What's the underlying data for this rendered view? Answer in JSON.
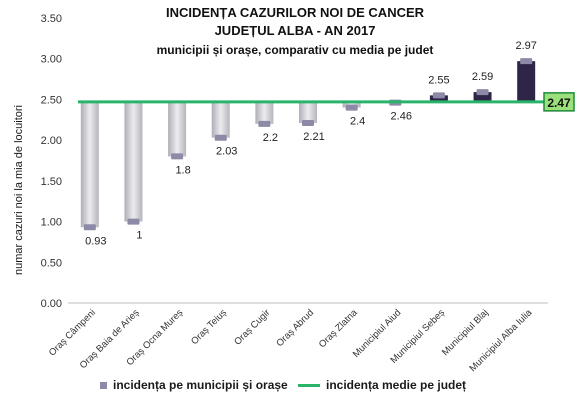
{
  "chart_data": {
    "type": "bar",
    "title": "INCIDENȚA CAZURILOR NOI DE CANCER",
    "subtitle1": "JUDEȚUL ALBA - AN 2017",
    "subtitle2": "municipii și orașe, comparativ cu media pe judet",
    "ylabel": "numar cazuri noi la mia de locuitori",
    "xlabel": "",
    "ylim": [
      0,
      3.5
    ],
    "yticks": [
      "0.00",
      "0.50",
      "1.00",
      "1.50",
      "2.00",
      "2.50",
      "3.00",
      "3.50"
    ],
    "baseline": 2.47,
    "categories": [
      "Oraș Câmpeni",
      "Oraș Baia de Arieș",
      "Oraș Ocna Mureș",
      "Oraș Teiuș",
      "Oraș Cugir",
      "Oraș Abrud",
      "Oraș Zlatna",
      "Municipiul Aiud",
      "Municipiul Sebeș",
      "Municipiul Blaj",
      "Municipiul Alba Iulia"
    ],
    "values": [
      0.93,
      1,
      1.8,
      2.03,
      2.2,
      2.21,
      2.4,
      2.46,
      2.55,
      2.59,
      2.97
    ],
    "value_labels": [
      "0.93",
      "1",
      "1.8",
      "2.03",
      "2.2",
      "2.21",
      "2.4",
      "2.46",
      "2.55",
      "2.59",
      "2.97"
    ],
    "average_label": "2.47",
    "legend": [
      "incidența pe municipii și orașe",
      "incidența medie pe județ"
    ],
    "grid": false,
    "colors": {
      "below_bar": "#c8c8ce",
      "above_bar": "#2f2548",
      "cap": "#8c8aa6",
      "average_line": "#2ab46a",
      "average_box": "#9be07a"
    }
  }
}
